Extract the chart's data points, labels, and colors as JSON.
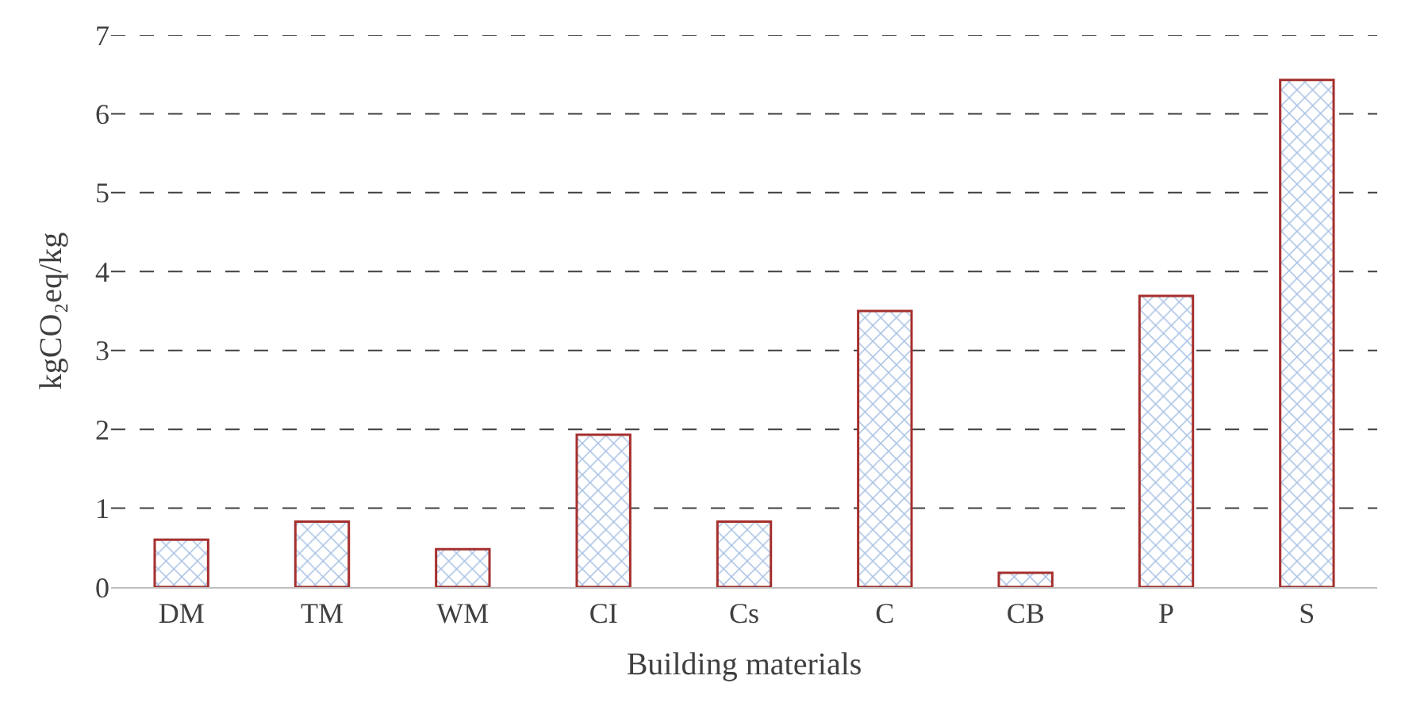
{
  "chart_data": {
    "type": "bar",
    "categories": [
      "DM",
      "TM",
      "WM",
      "CI",
      "Cs",
      "C",
      "CB",
      "P",
      "S"
    ],
    "values": [
      0.6,
      0.83,
      0.48,
      1.93,
      0.83,
      3.5,
      0.18,
      3.69,
      6.43
    ],
    "color": "#a5302e",
    "xlabel": "Building materials",
    "ylabel": "kgCO₂eq/kg",
    "ylim": [
      0,
      7
    ],
    "yticks": [
      0,
      1,
      2,
      3,
      4,
      5,
      6,
      7
    ],
    "grid": "y"
  }
}
